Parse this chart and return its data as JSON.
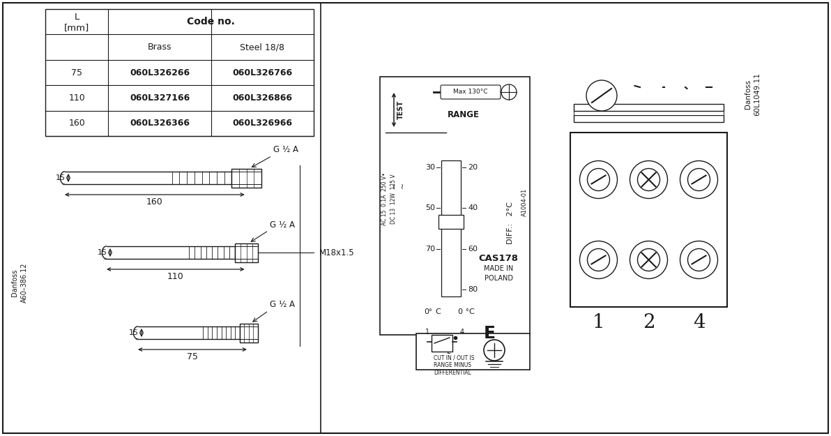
{
  "bg_color": "#ffffff",
  "line_color": "#1a1a1a",
  "text_color": "#1a1a1a",
  "table_rows": [
    [
      "75",
      "060L326266",
      "060L326766"
    ],
    [
      "110",
      "060L327166",
      "060L326866"
    ],
    [
      "160",
      "060L326366",
      "060L326966"
    ]
  ]
}
